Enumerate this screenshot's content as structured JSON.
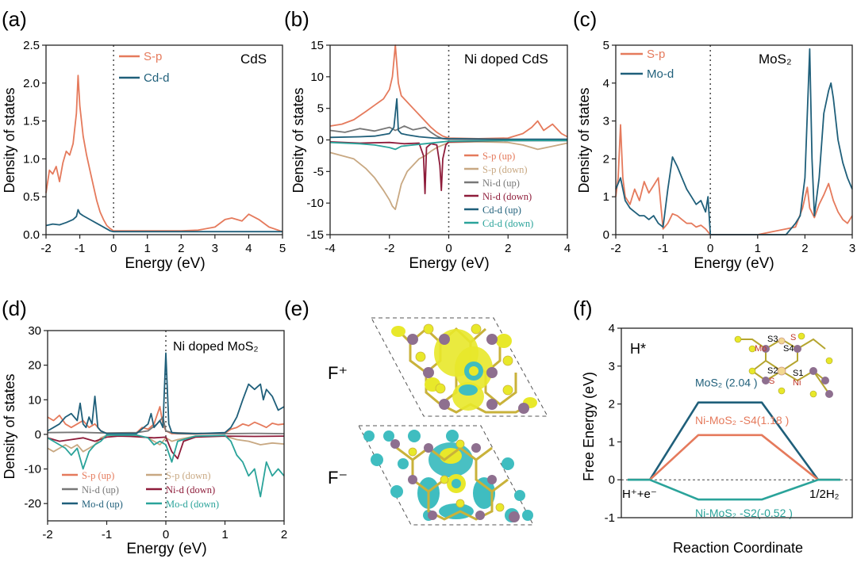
{
  "chart_data": [
    {
      "id": "a",
      "panel_label": "(a)",
      "type": "line",
      "title": "CdS",
      "xlabel": "Energy (eV)",
      "ylabel": "Density of states",
      "xlim": [
        -2,
        5
      ],
      "ylim": [
        0,
        2.5
      ],
      "xticks": [
        "-2",
        "-1",
        "0",
        "1",
        "2",
        "3",
        "4",
        "5"
      ],
      "yticks": [
        "0.0",
        "0.5",
        "1.0",
        "1.5",
        "2.0",
        "2.5"
      ],
      "fermi_line_x": 0,
      "legend_position": "top-left",
      "series": [
        {
          "name": "S-p",
          "color": "#e57a5c",
          "x": [
            -2,
            -1.9,
            -1.8,
            -1.7,
            -1.6,
            -1.5,
            -1.4,
            -1.3,
            -1.2,
            -1.1,
            -1.05,
            -1.0,
            -0.9,
            -0.8,
            -0.7,
            -0.6,
            -0.5,
            -0.4,
            -0.3,
            -0.2,
            -0.1,
            0.0,
            0.5,
            1.0,
            1.5,
            2.0,
            2.5,
            3.0,
            3.3,
            3.5,
            3.8,
            4.0,
            4.3,
            4.6,
            5.0
          ],
          "y": [
            0.55,
            0.85,
            0.8,
            0.9,
            0.7,
            0.95,
            1.1,
            1.05,
            1.2,
            1.6,
            2.1,
            1.7,
            1.3,
            1.05,
            0.85,
            0.65,
            0.45,
            0.3,
            0.2,
            0.12,
            0.08,
            0.05,
            0.05,
            0.05,
            0.05,
            0.05,
            0.06,
            0.1,
            0.2,
            0.22,
            0.18,
            0.27,
            0.2,
            0.1,
            0.04
          ]
        },
        {
          "name": "Cd-d",
          "color": "#1f5f7a",
          "x": [
            -2,
            -1.8,
            -1.6,
            -1.4,
            -1.2,
            -1.1,
            -1.05,
            -1.0,
            -0.9,
            -0.7,
            -0.5,
            -0.3,
            -0.1,
            0.0,
            1.0,
            2.0,
            3.0,
            4.0,
            5.0
          ],
          "y": [
            0.12,
            0.14,
            0.13,
            0.16,
            0.2,
            0.24,
            0.33,
            0.28,
            0.25,
            0.2,
            0.15,
            0.1,
            0.05,
            0.04,
            0.04,
            0.04,
            0.04,
            0.04,
            0.04
          ]
        }
      ]
    },
    {
      "id": "b",
      "panel_label": "(b)",
      "type": "line",
      "title": "Ni doped CdS",
      "xlabel": "Energy (eV)",
      "ylabel": "Density of states",
      "xlim": [
        -4,
        4
      ],
      "ylim": [
        -15,
        15
      ],
      "xticks": [
        "-4",
        "-2",
        "0",
        "2",
        "4"
      ],
      "yticks": [
        "-15",
        "-10",
        "-5",
        "0",
        "5",
        "10",
        "15"
      ],
      "fermi_line_x": 0,
      "legend_position": "bottom-right",
      "series": [
        {
          "name": "S-p (up)",
          "color": "#e57a5c",
          "x": [
            -4,
            -3.6,
            -3.2,
            -2.8,
            -2.5,
            -2.2,
            -2.0,
            -1.9,
            -1.8,
            -1.75,
            -1.7,
            -1.6,
            -1.4,
            -1.2,
            -1.0,
            -0.8,
            -0.6,
            -0.4,
            -0.2,
            0.0,
            1.0,
            2.0,
            2.5,
            2.8,
            3.0,
            3.2,
            3.5,
            3.8,
            4.0
          ],
          "y": [
            2.2,
            2.5,
            3.2,
            4.5,
            5.5,
            6.5,
            8,
            10,
            15,
            12,
            9,
            7,
            6,
            5,
            4,
            3,
            2,
            1.2,
            0.6,
            0.3,
            0.2,
            0.3,
            1,
            2,
            3,
            1.5,
            2.5,
            1,
            0.5
          ]
        },
        {
          "name": "S-p (down)",
          "color": "#c8a882",
          "x": [
            -4,
            -3.6,
            -3.2,
            -2.8,
            -2.5,
            -2.2,
            -2.0,
            -1.9,
            -1.8,
            -1.7,
            -1.6,
            -1.4,
            -1.2,
            -1.0,
            -0.8,
            -0.6,
            -0.4,
            -0.2,
            0.0,
            1.0,
            2.0,
            2.5,
            3.0,
            3.5,
            4.0
          ],
          "y": [
            -2,
            -2.5,
            -3,
            -4.5,
            -6,
            -8,
            -9.5,
            -10.5,
            -11,
            -9,
            -7,
            -5,
            -4,
            -3,
            -2.5,
            -1.8,
            -1.2,
            -0.8,
            -0.4,
            -0.3,
            -0.4,
            -0.8,
            -1.5,
            -1,
            -0.5
          ]
        },
        {
          "name": "Ni-d (up)",
          "color": "#777777",
          "x": [
            -4,
            -3.5,
            -3.0,
            -2.5,
            -2.0,
            -1.8,
            -1.5,
            -1.2,
            -1.0,
            -0.8,
            -0.6,
            -0.4,
            -0.2,
            0.0,
            2.0,
            4.0
          ],
          "y": [
            1.5,
            1.2,
            1.8,
            1.4,
            2.0,
            1.5,
            2.2,
            1.6,
            1.8,
            2.0,
            1.2,
            0.6,
            0.2,
            0.1,
            0.05,
            0.05
          ]
        },
        {
          "name": "Ni-d (down)",
          "color": "#8e1c3a",
          "x": [
            -4,
            -3.0,
            -2.0,
            -1.5,
            -1.0,
            -0.85,
            -0.8,
            -0.75,
            -0.6,
            -0.4,
            -0.3,
            -0.25,
            -0.2,
            -0.1,
            0.0,
            2.0,
            4.0
          ],
          "y": [
            -0.3,
            -0.5,
            -0.4,
            -0.6,
            -0.5,
            -2.5,
            -8.5,
            -1.2,
            -0.6,
            -0.8,
            -4,
            -8,
            -3,
            -0.8,
            -0.3,
            -0.1,
            -0.1
          ]
        },
        {
          "name": "Cd-d (up)",
          "color": "#1f5f7a",
          "x": [
            -4,
            -3.0,
            -2.5,
            -2.0,
            -1.85,
            -1.75,
            -1.7,
            -1.6,
            -1.4,
            -1.0,
            -0.5,
            0.0,
            2.0,
            4.0
          ],
          "y": [
            0.4,
            0.5,
            0.6,
            1.0,
            2.0,
            6.5,
            1.5,
            1.0,
            0.8,
            0.5,
            0.3,
            0.2,
            0.1,
            0.1
          ]
        },
        {
          "name": "Cd-d (down)",
          "color": "#2aa39a",
          "x": [
            -4,
            -3.0,
            -2.5,
            -2.0,
            -1.8,
            -1.6,
            -1.2,
            -0.8,
            -0.4,
            0.0,
            2.0,
            4.0
          ],
          "y": [
            -0.4,
            -0.6,
            -0.8,
            -1.2,
            -1.5,
            -1.0,
            -0.8,
            -0.6,
            -0.4,
            -0.2,
            -0.1,
            -0.1
          ]
        }
      ]
    },
    {
      "id": "c",
      "panel_label": "(c)",
      "type": "line",
      "title": "MoS₂",
      "xlabel": "Energy (eV)",
      "ylabel": "Density of states",
      "xlim": [
        -2,
        3
      ],
      "ylim": [
        0,
        5
      ],
      "xticks": [
        "-2",
        "-1",
        "0",
        "1",
        "2",
        "3"
      ],
      "yticks": [
        "0",
        "1",
        "2",
        "3",
        "4",
        "5"
      ],
      "fermi_line_x": 0,
      "legend_position": "top-left",
      "series": [
        {
          "name": "S-p",
          "color": "#e57a5c",
          "x": [
            -2,
            -1.95,
            -1.9,
            -1.85,
            -1.8,
            -1.7,
            -1.6,
            -1.5,
            -1.4,
            -1.3,
            -1.2,
            -1.1,
            -1.0,
            -0.9,
            -0.8,
            -0.7,
            -0.6,
            -0.5,
            -0.4,
            -0.3,
            -0.2,
            -0.1,
            0.0,
            1.0,
            1.8,
            1.95,
            2.05,
            2.1,
            2.2,
            2.3,
            2.4,
            2.5,
            2.6,
            2.7,
            2.8,
            2.9,
            3.0
          ],
          "y": [
            1.0,
            1.5,
            2.9,
            1.5,
            1.0,
            0.8,
            1.2,
            0.9,
            1.4,
            1.1,
            1.3,
            1.5,
            0.15,
            0.3,
            0.55,
            0.5,
            0.4,
            0.3,
            0.3,
            0.2,
            0.25,
            0.15,
            0.0,
            0.0,
            0.2,
            0.7,
            1.25,
            0.7,
            0.45,
            0.8,
            1.05,
            1.35,
            0.9,
            0.6,
            0.4,
            0.3,
            0.5
          ]
        },
        {
          "name": "Mo-d",
          "color": "#1f5f7a",
          "x": [
            -2,
            -1.9,
            -1.8,
            -1.7,
            -1.6,
            -1.5,
            -1.4,
            -1.3,
            -1.2,
            -1.1,
            -1.0,
            -0.9,
            -0.8,
            -0.7,
            -0.6,
            -0.5,
            -0.4,
            -0.3,
            -0.2,
            -0.1,
            -0.05,
            0.0,
            1.0,
            1.6,
            1.8,
            1.9,
            2.0,
            2.1,
            2.15,
            2.2,
            2.3,
            2.4,
            2.5,
            2.55,
            2.6,
            2.7,
            2.8,
            2.9,
            3.0
          ],
          "y": [
            1.2,
            1.5,
            0.9,
            0.7,
            0.6,
            0.5,
            0.5,
            0.4,
            0.5,
            0.3,
            0.2,
            1.2,
            2.05,
            1.8,
            1.5,
            1.2,
            1.0,
            0.8,
            0.9,
            0.6,
            1.0,
            0.0,
            0.0,
            0.0,
            0.3,
            0.5,
            1.5,
            4.9,
            2.0,
            0.5,
            1.5,
            3.2,
            3.8,
            4.0,
            3.6,
            2.5,
            1.9,
            1.5,
            1.2
          ]
        }
      ]
    },
    {
      "id": "d",
      "panel_label": "(d)",
      "type": "line",
      "title": "Ni doped MoS₂",
      "xlabel": "Energy (eV)",
      "ylabel": "Density of states",
      "xlim": [
        -2,
        2
      ],
      "ylim": [
        -25,
        30
      ],
      "xticks": [
        "-2",
        "-1",
        "0",
        "1",
        "2"
      ],
      "yticks": [
        "-20",
        "-10",
        "0",
        "10",
        "20",
        "30"
      ],
      "fermi_line_x": 0,
      "legend_position": "bottom",
      "series": [
        {
          "name": "S-p (up)",
          "color": "#e57a5c",
          "x": [
            -2,
            -1.9,
            -1.8,
            -1.7,
            -1.6,
            -1.5,
            -1.4,
            -1.3,
            -1.2,
            -1.1,
            -1.0,
            -0.5,
            -0.4,
            -0.3,
            -0.2,
            -0.1,
            -0.05,
            0.0,
            0.1,
            0.5,
            1.0,
            1.1,
            1.2,
            1.3,
            1.4,
            1.5,
            1.6,
            1.7,
            1.8,
            1.9,
            2.0
          ],
          "y": [
            5,
            4,
            5.5,
            3,
            2,
            3,
            4,
            2,
            3,
            1,
            0.3,
            0.4,
            2,
            1.5,
            3,
            8,
            3,
            1,
            0.2,
            0.1,
            0.3,
            1.5,
            2,
            3,
            2.5,
            3.5,
            2.8,
            2,
            3.2,
            2.8,
            3
          ]
        },
        {
          "name": "S-p (down)",
          "color": "#c8a882",
          "x": [
            -2,
            -1.9,
            -1.8,
            -1.7,
            -1.6,
            -1.5,
            -1.4,
            -1.3,
            -1.2,
            -1.1,
            -1.0,
            -0.5,
            -0.3,
            -0.2,
            -0.1,
            -0.05,
            0.0,
            0.1,
            0.2,
            0.5,
            1.0,
            1.2,
            1.4,
            1.6,
            1.8,
            2.0
          ],
          "y": [
            -4,
            -5,
            -4,
            -3,
            -4,
            -3,
            -5,
            -4,
            -3,
            -1,
            -0.3,
            -0.3,
            -1,
            -2,
            -3,
            -2,
            -1,
            -2,
            -1.5,
            -0.5,
            -0.5,
            -1.5,
            -2,
            -3,
            -2.5,
            -2.8
          ]
        },
        {
          "name": "Ni-d (up)",
          "color": "#777777",
          "x": [
            -2,
            -1.5,
            -1.0,
            -0.5,
            -0.3,
            -0.15,
            -0.05,
            0.0,
            0.1,
            0.5,
            1.0,
            1.5,
            2.0
          ],
          "y": [
            0.5,
            0.6,
            0.4,
            0.5,
            1,
            3,
            5,
            1,
            0.5,
            0.3,
            0.2,
            0.3,
            0.2
          ]
        },
        {
          "name": "Ni-d (down)",
          "color": "#8e1c3a",
          "x": [
            -2,
            -1.8,
            -1.6,
            -1.4,
            -1.2,
            -1.0,
            -0.8,
            -0.6,
            -0.4,
            -0.2,
            0.0,
            0.1,
            0.2,
            0.3,
            0.5,
            1.0,
            1.5,
            2.0
          ],
          "y": [
            -1,
            -2,
            -1.5,
            -1,
            -2,
            -0.8,
            -0.5,
            -0.6,
            -0.8,
            -1,
            -0.8,
            -5,
            -7,
            -2,
            -0.8,
            -0.5,
            -0.6,
            -0.5
          ]
        },
        {
          "name": "Mo-d (up)",
          "color": "#1f5f7a",
          "x": [
            -2,
            -1.9,
            -1.8,
            -1.7,
            -1.6,
            -1.5,
            -1.45,
            -1.4,
            -1.35,
            -1.3,
            -1.25,
            -1.2,
            -1.15,
            -1.1,
            -1.0,
            -0.5,
            -0.3,
            -0.25,
            -0.2,
            -0.1,
            -0.05,
            0.0,
            0.05,
            0.1,
            0.2,
            0.5,
            1.0,
            1.1,
            1.2,
            1.3,
            1.4,
            1.5,
            1.6,
            1.65,
            1.7,
            1.8,
            1.9,
            2.0
          ],
          "y": [
            1,
            2,
            3,
            5,
            6,
            4,
            9,
            3,
            2,
            5,
            3,
            11,
            2,
            1,
            0.2,
            0.2,
            3,
            6,
            2,
            4,
            2,
            23.5,
            3,
            0.5,
            0.3,
            0.2,
            0.5,
            2,
            5,
            10,
            14.5,
            13,
            14.5,
            10,
            13,
            11,
            7,
            8
          ]
        },
        {
          "name": "Mo-d (down)",
          "color": "#2aa39a",
          "x": [
            -2,
            -1.9,
            -1.8,
            -1.7,
            -1.6,
            -1.5,
            -1.4,
            -1.3,
            -1.2,
            -1.1,
            -1.0,
            -0.5,
            -0.3,
            -0.2,
            -0.1,
            0.0,
            0.1,
            0.2,
            0.5,
            1.0,
            1.1,
            1.2,
            1.3,
            1.4,
            1.5,
            1.6,
            1.7,
            1.8,
            1.9,
            2.0
          ],
          "y": [
            -1,
            -2,
            -3,
            -4,
            -6,
            -4,
            -10,
            -5,
            -3,
            -2,
            -0.2,
            -0.2,
            -1,
            -3,
            -2,
            -3,
            -8,
            -2,
            -0.5,
            -0.3,
            -2,
            -6,
            -8,
            -12,
            -10,
            -18,
            -8,
            -12,
            -10,
            -12
          ]
        }
      ]
    },
    {
      "id": "f",
      "panel_label": "(f)",
      "type": "line",
      "title": "H*",
      "xlabel": "Reaction Coordinate",
      "ylabel": "Free Energy (eV)",
      "ylim": [
        -1,
        4
      ],
      "yticks": [
        "-1",
        "0",
        "1",
        "2",
        "3",
        "4"
      ],
      "start_label": "H⁺+e⁻",
      "end_label": "1/2H₂",
      "series": [
        {
          "name": "MoS₂ (2.04 )",
          "color": "#1f5f7a",
          "dg": 2.04
        },
        {
          "name": "Ni-MoS₂ -S4(1.18 )",
          "color": "#e57a5c",
          "dg": 1.18
        },
        {
          "name": "Ni-MoS₂ -S2(-0.52 )",
          "color": "#2aa39a",
          "dg": -0.52
        }
      ],
      "inset_labels": {
        "sites": [
          "S3",
          "S4",
          "S2",
          "S1"
        ],
        "species": [
          "S",
          "Mo",
          "S",
          "Ni"
        ]
      }
    }
  ],
  "panel_e": {
    "panel_label": "(e)",
    "label_top": "F⁺",
    "label_bottom": "F⁻",
    "colors": {
      "yellow": "#e8e82a",
      "cyan": "#3fbdc0",
      "purple": "#8e6f8f"
    }
  }
}
